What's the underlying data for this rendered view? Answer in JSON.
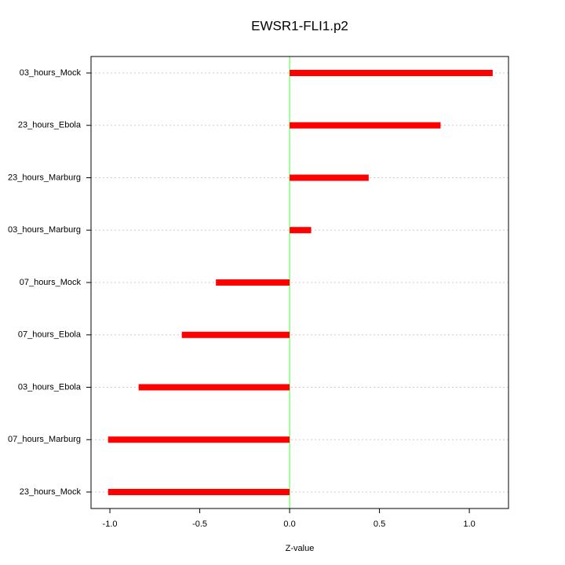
{
  "chart_data": {
    "type": "bar",
    "orientation": "horizontal",
    "title": "EWSR1-FLI1.p2",
    "x_label": "Z-value",
    "categories": [
      "03_hours_Mock",
      "23_hours_Ebola",
      "23_hours_Marburg",
      "03_hours_Marburg",
      "07_hours_Mock",
      "07_hours_Ebola",
      "03_hours_Ebola",
      "07_hours_Marburg",
      "23_hours_Mock"
    ],
    "values": [
      1.13,
      0.84,
      0.44,
      0.12,
      -0.41,
      -0.6,
      -0.84,
      -1.01,
      -1.01
    ],
    "color": "#ff0000",
    "zero_line_color": "#80ff80",
    "xlim": [
      -1.105,
      1.218
    ],
    "xticks": [
      {
        "value": -1,
        "label": "-1.0"
      },
      -0.5,
      {
        "value": 0,
        "label": "0.0"
      },
      0.5,
      {
        "value": 1,
        "label": "1.0"
      }
    ],
    "grid": true
  }
}
